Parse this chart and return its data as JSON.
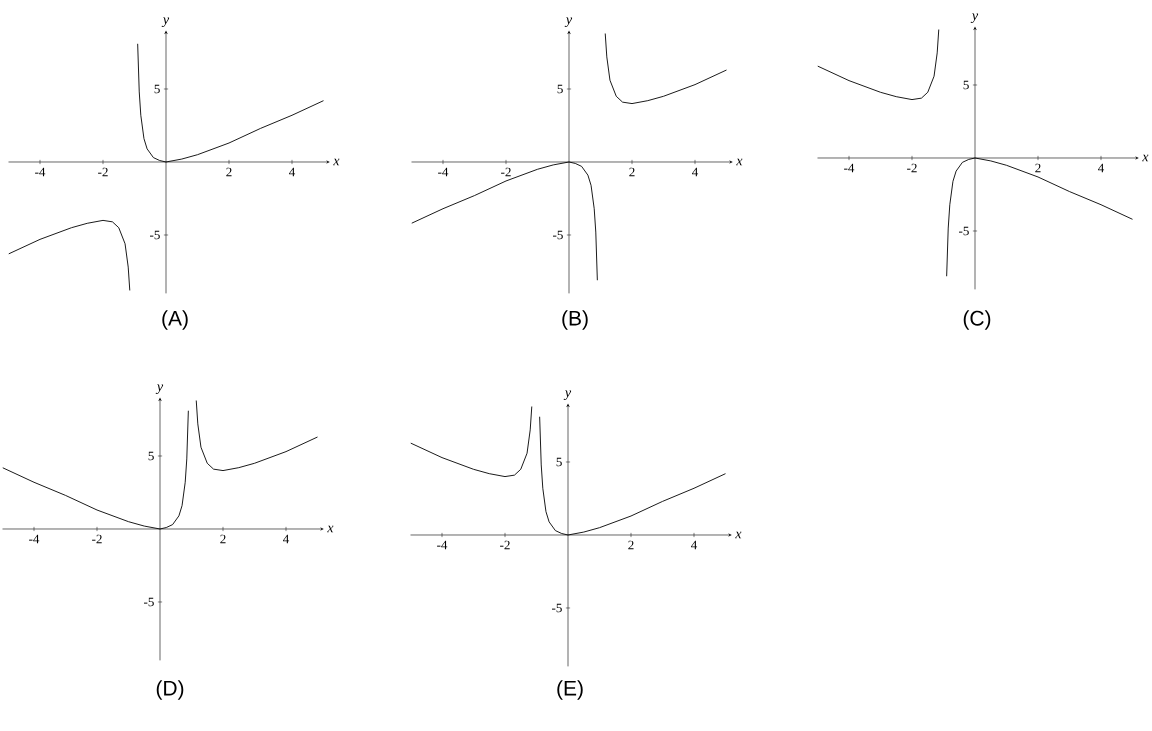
{
  "chart_data": [
    {
      "type": "line",
      "title": "(A)",
      "xlabel": "x",
      "ylabel": "y",
      "xlim": [
        -5,
        5.2
      ],
      "ylim": [
        -9,
        9
      ],
      "xticks": [
        -4,
        -2,
        2,
        4
      ],
      "yticks": [
        -5,
        5
      ],
      "series": [
        {
          "color": "#000000",
          "x": [
            -5,
            -4,
            -3,
            -2.5,
            -2,
            -1.7,
            -1.5,
            -1.3,
            -1.2,
            -1.15,
            -1,
            -0.9,
            -0.85,
            -0.8,
            -0.7,
            -0.6,
            -0.4,
            -0.2,
            0,
            0.5,
            1,
            2,
            3,
            4,
            5
          ],
          "values": [
            -6.3,
            -5.3,
            -4.5,
            -4.2,
            -4,
            -4.1,
            -4.5,
            -5.6,
            -7.2,
            -8.8,
            null,
            8.1,
            4.8,
            3.2,
            1.6,
            0.9,
            0.3,
            0.1,
            0,
            0.2,
            0.5,
            1.3,
            2.3,
            3.2,
            4.2
          ]
        }
      ]
    },
    {
      "type": "line",
      "title": "(B)",
      "xlabel": "x",
      "ylabel": "y",
      "xlim": [
        -5,
        5.2
      ],
      "ylim": [
        -9,
        9
      ],
      "xticks": [
        -4,
        -2,
        2,
        4
      ],
      "yticks": [
        -5,
        5
      ],
      "series": [
        {
          "color": "#000000",
          "x": [
            -5,
            -4,
            -3,
            -2,
            -1,
            -0.5,
            0,
            0.2,
            0.4,
            0.6,
            0.7,
            0.8,
            0.85,
            0.9,
            1,
            1.15,
            1.2,
            1.3,
            1.5,
            1.7,
            2,
            2.5,
            3,
            4,
            5
          ],
          "values": [
            -4.2,
            -3.2,
            -2.3,
            -1.3,
            -0.5,
            -0.2,
            0,
            -0.1,
            -0.3,
            -0.9,
            -1.6,
            -3.2,
            -4.8,
            -8.1,
            null,
            8.8,
            7.2,
            5.6,
            4.5,
            4.1,
            4,
            4.2,
            4.5,
            5.3,
            6.3
          ]
        }
      ]
    },
    {
      "type": "line",
      "title": "(C)",
      "xlabel": "x",
      "ylabel": "y",
      "xlim": [
        -5,
        5.2
      ],
      "ylim": [
        -9,
        9
      ],
      "xticks": [
        -4,
        -2,
        2,
        4
      ],
      "yticks": [
        -5,
        5
      ],
      "series": [
        {
          "color": "#000000",
          "x": [
            -5,
            -4,
            -3,
            -2.5,
            -2,
            -1.7,
            -1.5,
            -1.3,
            -1.2,
            -1.15,
            -1,
            -0.9,
            -0.85,
            -0.8,
            -0.7,
            -0.6,
            -0.4,
            -0.2,
            0,
            0.5,
            1,
            2,
            3,
            4,
            5
          ],
          "values": [
            6.3,
            5.3,
            4.5,
            4.2,
            4,
            4.1,
            4.5,
            5.6,
            7.2,
            8.8,
            null,
            -8.1,
            -4.8,
            -3.2,
            -1.6,
            -0.9,
            -0.3,
            -0.1,
            0,
            -0.2,
            -0.5,
            -1.3,
            -2.3,
            -3.2,
            -4.2
          ]
        }
      ]
    },
    {
      "type": "line",
      "title": "(D)",
      "xlabel": "x",
      "ylabel": "y",
      "xlim": [
        -5,
        5.2
      ],
      "ylim": [
        -9,
        9
      ],
      "xticks": [
        -4,
        -2,
        2,
        4
      ],
      "yticks": [
        -5,
        5
      ],
      "series": [
        {
          "color": "#000000",
          "x": [
            -5,
            -4,
            -3,
            -2,
            -1,
            -0.5,
            0,
            0.2,
            0.4,
            0.6,
            0.7,
            0.8,
            0.85,
            0.9,
            1,
            1.15,
            1.2,
            1.3,
            1.5,
            1.7,
            2,
            2.5,
            3,
            4,
            5
          ],
          "values": [
            4.2,
            3.2,
            2.3,
            1.3,
            0.5,
            0.2,
            0,
            0.1,
            0.3,
            0.9,
            1.6,
            3.2,
            4.8,
            8.1,
            null,
            8.8,
            7.2,
            5.6,
            4.5,
            4.1,
            4,
            4.2,
            4.5,
            5.3,
            6.3
          ]
        }
      ]
    },
    {
      "type": "line",
      "title": "(E)",
      "xlabel": "x",
      "ylabel": "y",
      "xlim": [
        -5,
        5.2
      ],
      "ylim": [
        -9,
        9
      ],
      "xticks": [
        -4,
        -2,
        2,
        4
      ],
      "yticks": [
        -5,
        5
      ],
      "series": [
        {
          "color": "#000000",
          "x": [
            -5,
            -4,
            -3,
            -2.5,
            -2,
            -1.7,
            -1.5,
            -1.3,
            -1.2,
            -1.15,
            -1,
            -0.9,
            -0.85,
            -0.8,
            -0.7,
            -0.6,
            -0.4,
            -0.2,
            0,
            0.5,
            1,
            2,
            3,
            4,
            5
          ],
          "values": [
            6.3,
            5.3,
            4.5,
            4.2,
            4,
            4.1,
            4.5,
            5.6,
            7.2,
            8.8,
            null,
            8.1,
            4.8,
            3.2,
            1.6,
            0.9,
            0.3,
            0.1,
            0,
            0.2,
            0.5,
            1.3,
            2.3,
            3.2,
            4.2
          ]
        }
      ]
    }
  ]
}
